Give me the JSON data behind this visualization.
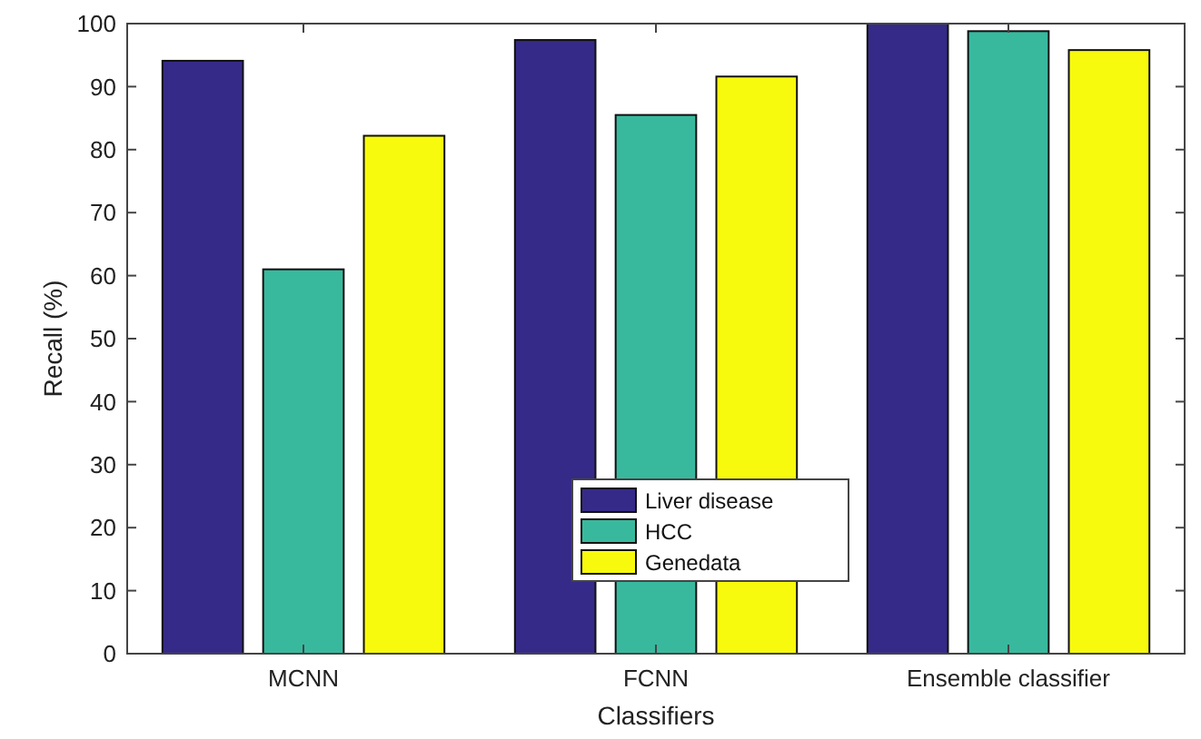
{
  "chart_data": {
    "type": "bar",
    "xlabel": "Classifiers",
    "ylabel": "Recall (%)",
    "categories": [
      "MCNN",
      "FCNN",
      "Ensemble classifier"
    ],
    "series": [
      {
        "name": "Liver disease",
        "color": "#352a87",
        "values": [
          94.1,
          97.4,
          100
        ]
      },
      {
        "name": "HCC",
        "color": "#38b99e",
        "values": [
          61,
          85.5,
          98.8
        ]
      },
      {
        "name": "Genedata",
        "color": "#f8fa0d",
        "values": [
          82.2,
          91.6,
          95.8
        ]
      }
    ],
    "ylim": [
      0,
      100
    ],
    "yticks": [
      0,
      10,
      20,
      30,
      40,
      50,
      60,
      70,
      80,
      90,
      100
    ],
    "grid": false,
    "legend": "bottom"
  }
}
